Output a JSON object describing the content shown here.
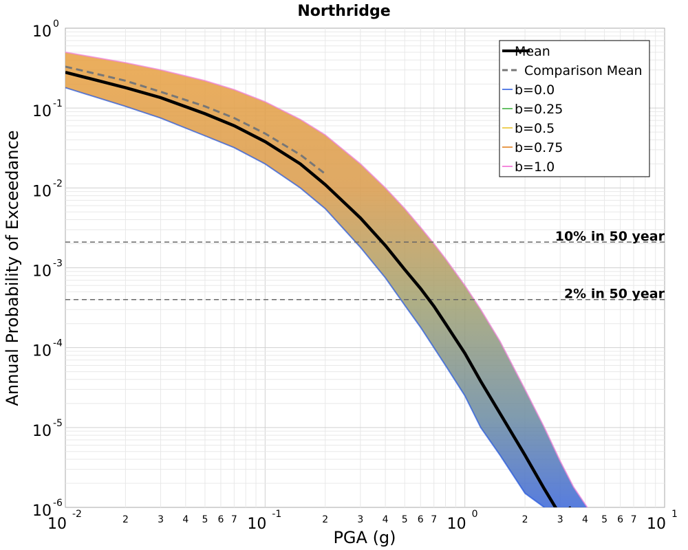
{
  "chart_data": {
    "type": "line",
    "title": "Northridge",
    "xlabel": "PGA (g)",
    "ylabel": "Annual Probability of Exceedance",
    "x_scale": "log",
    "y_scale": "log",
    "xlim": [
      0.01,
      10
    ],
    "ylim": [
      1e-06,
      1
    ],
    "grid": true,
    "legend_position": "top-right",
    "x_major_ticks": [
      {
        "base": "10",
        "exp": "-2",
        "value": 0.01
      },
      {
        "base": "10",
        "exp": "-1",
        "value": 0.1
      },
      {
        "base": "10",
        "exp": "0",
        "value": 1
      },
      {
        "base": "10",
        "exp": "1",
        "value": 10
      }
    ],
    "x_minor_tick_labels": [
      "2",
      "3",
      "4",
      "5",
      "6",
      "7"
    ],
    "y_major_ticks": [
      {
        "base": "10",
        "exp": "0",
        "value": 1
      },
      {
        "base": "10",
        "exp": "-1",
        "value": 0.1
      },
      {
        "base": "10",
        "exp": "-2",
        "value": 0.01
      },
      {
        "base": "10",
        "exp": "-3",
        "value": 0.001
      },
      {
        "base": "10",
        "exp": "-4",
        "value": 0.0001
      },
      {
        "base": "10",
        "exp": "-5",
        "value": 1e-05
      },
      {
        "base": "10",
        "exp": "-6",
        "value": 1e-06
      }
    ],
    "series": [
      {
        "name": "Mean",
        "style": "solid-thick",
        "color": "#000000",
        "x": [
          0.01,
          0.02,
          0.03,
          0.05,
          0.07,
          0.1,
          0.15,
          0.2,
          0.3,
          0.4,
          0.5,
          0.6,
          0.7,
          0.8,
          1.0,
          1.2,
          1.5,
          2.0,
          2.5,
          3.0,
          3.4
        ],
        "y": [
          0.28,
          0.18,
          0.135,
          0.085,
          0.06,
          0.038,
          0.02,
          0.011,
          0.0042,
          0.0019,
          0.00095,
          0.00055,
          0.00033,
          0.0002,
          8.5e-05,
          3.8e-05,
          1.5e-05,
          4.5e-06,
          1.7e-06,
          8e-07,
          1e-06
        ]
      },
      {
        "name": "Comparison Mean",
        "style": "dashed",
        "color": "#777777",
        "x": [
          0.01,
          0.02,
          0.03,
          0.05,
          0.07,
          0.1,
          0.15,
          0.2
        ],
        "y": [
          0.33,
          0.22,
          0.16,
          0.105,
          0.075,
          0.048,
          0.026,
          0.015
        ]
      },
      {
        "name": "b=0.0",
        "color": "#2255dd"
      },
      {
        "name": "b=0.25",
        "color": "#33aa33"
      },
      {
        "name": "b=0.5",
        "color": "#e8c020"
      },
      {
        "name": "b=0.75",
        "color": "#e07810"
      },
      {
        "name": "b=1.0",
        "color": "#f060d0"
      }
    ],
    "band": {
      "upper": {
        "x": [
          0.01,
          0.02,
          0.03,
          0.05,
          0.07,
          0.1,
          0.15,
          0.2,
          0.3,
          0.4,
          0.5,
          0.6,
          0.7,
          0.8,
          1.0,
          1.2,
          1.5,
          2.0,
          2.5,
          3.0,
          3.5,
          4.1
        ],
        "y": [
          0.5,
          0.37,
          0.3,
          0.22,
          0.17,
          0.12,
          0.072,
          0.046,
          0.02,
          0.01,
          0.0055,
          0.0032,
          0.002,
          0.0013,
          0.0006,
          0.0003,
          0.00012,
          3e-05,
          1e-05,
          3.8e-06,
          1.8e-06,
          1e-06
        ]
      },
      "lower": {
        "x": [
          0.01,
          0.02,
          0.03,
          0.05,
          0.07,
          0.1,
          0.15,
          0.2,
          0.3,
          0.4,
          0.5,
          0.6,
          0.7,
          0.8,
          1.0,
          1.2,
          1.5,
          2.0,
          2.5
        ],
        "y": [
          0.18,
          0.105,
          0.075,
          0.045,
          0.032,
          0.02,
          0.01,
          0.0055,
          0.0018,
          0.00075,
          0.00034,
          0.00018,
          0.0001,
          6e-05,
          2.5e-05,
          1e-05,
          4.5e-06,
          1.5e-06,
          1e-06
        ]
      }
    },
    "reference_lines": [
      {
        "label": "10% in 50 year",
        "y": 0.0021
      },
      {
        "label": "2% in 50 year",
        "y": 0.0004
      }
    ]
  }
}
